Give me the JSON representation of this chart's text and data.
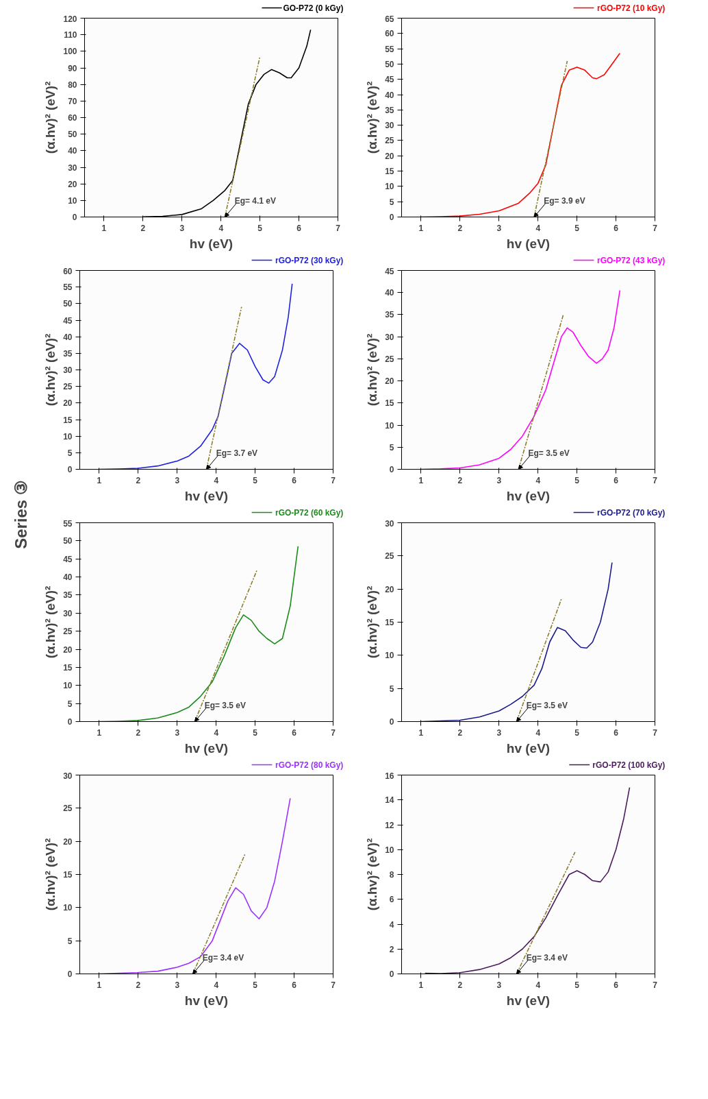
{
  "chart_data": [
    {
      "type": "line",
      "xlabel": "hv (eV)",
      "ylabel": "(α.hv)² (eV)²",
      "xlim": [
        0.5,
        7
      ],
      "xticks": [
        1,
        2,
        3,
        4,
        5,
        6,
        7
      ],
      "ylim": [
        0,
        120
      ],
      "yticks": [
        0,
        10,
        20,
        30,
        40,
        50,
        60,
        70,
        80,
        90,
        100,
        110,
        120
      ],
      "grid": false,
      "legend": "top right",
      "annotations": [
        "Series ③",
        {
          "text": "Eg= 4.1 eV",
          "x": 4.1,
          "y": 0
        }
      ],
      "series": [
        {
          "name": "GO-P72 (0 kGy)",
          "color": "#000000",
          "x": [
            2,
            2.5,
            3,
            3.5,
            3.8,
            4.1,
            4.3,
            4.5,
            4.7,
            4.9,
            5.1,
            5.3,
            5.5,
            5.7,
            5.8,
            6.0,
            6.2,
            6.3
          ],
          "values": [
            0.1,
            0.4,
            1.5,
            5,
            10,
            16,
            22,
            45,
            68,
            80,
            86,
            89,
            87,
            84,
            84,
            90,
            103,
            113
          ]
        },
        {
          "type": "line",
          "color": "#8b7d2a",
          "line_style": "dashed",
          "x": [
            4.1,
            5.0
          ],
          "values": [
            0,
            97
          ]
        }
      ]
    },
    {
      "type": "line",
      "xlabel": "hv (eV)",
      "ylabel": "(α.hv)² (eV)²",
      "xlim": [
        0.5,
        7
      ],
      "xticks": [
        1,
        2,
        3,
        4,
        5,
        6,
        7
      ],
      "ylim": [
        0,
        65
      ],
      "yticks": [
        0,
        5,
        10,
        15,
        20,
        25,
        30,
        35,
        40,
        45,
        50,
        55,
        60,
        65
      ],
      "grid": false,
      "legend": "top right",
      "annotations": [
        {
          "text": "Eg= 3.9 eV",
          "x": 3.9,
          "y": 0
        }
      ],
      "series": [
        {
          "name": "rGO-P72 (10 kGy)",
          "color": "#ff0000",
          "x": [
            1,
            1.5,
            2,
            2.5,
            3,
            3.5,
            3.8,
            4,
            4.2,
            4.4,
            4.6,
            4.8,
            5,
            5.2,
            5.4,
            5.5,
            5.7,
            5.9,
            6.1
          ],
          "values": [
            0,
            0.1,
            0.3,
            0.9,
            2,
            4.5,
            8,
            11,
            17,
            30,
            43,
            48,
            49,
            48,
            45.5,
            45.2,
            46.5,
            50,
            53.5
          ]
        },
        {
          "type": "line",
          "color": "#8b7d2a",
          "line_style": "dashed",
          "x": [
            3.9,
            4.75
          ],
          "values": [
            0,
            51
          ]
        }
      ]
    },
    {
      "type": "line",
      "xlabel": "hv (eV)",
      "ylabel": "(α.hv)² (eV)²",
      "xlim": [
        0.5,
        7
      ],
      "xticks": [
        1,
        2,
        3,
        4,
        5,
        6,
        7
      ],
      "ylim": [
        0,
        60
      ],
      "yticks": [
        0,
        5,
        10,
        15,
        20,
        25,
        30,
        35,
        40,
        45,
        50,
        55,
        60
      ],
      "grid": false,
      "legend": "top right",
      "annotations": [
        {
          "text": "Eg= 3.7 eV",
          "x": 3.75,
          "y": 0
        }
      ],
      "series": [
        {
          "name": "rGO-P72 (30 kGy)",
          "color": "#2020e0",
          "x": [
            1,
            1.5,
            2,
            2.5,
            3,
            3.3,
            3.6,
            3.9,
            4.05,
            4.2,
            4.4,
            4.6,
            4.8,
            5,
            5.2,
            5.35,
            5.5,
            5.7,
            5.85,
            5.95
          ],
          "values": [
            0,
            0.1,
            0.3,
            1,
            2.5,
            4,
            7,
            12,
            16,
            24,
            35,
            38,
            36,
            31,
            27,
            26,
            28,
            36,
            46,
            56
          ]
        },
        {
          "type": "line",
          "color": "#8b7d2a",
          "line_style": "dashed",
          "x": [
            3.75,
            4.65
          ],
          "values": [
            0,
            49
          ]
        }
      ]
    },
    {
      "type": "line",
      "xlabel": "hv (eV)",
      "ylabel": "(α.hv)² (eV)²",
      "xlim": [
        0.5,
        7
      ],
      "xticks": [
        1,
        2,
        3,
        4,
        5,
        6,
        7
      ],
      "ylim": [
        0,
        45
      ],
      "yticks": [
        0,
        5,
        10,
        15,
        20,
        25,
        30,
        35,
        40,
        45
      ],
      "grid": false,
      "legend": "top right",
      "annotations": [
        {
          "text": "Eg= 3.5 eV",
          "x": 3.5,
          "y": 0
        }
      ],
      "series": [
        {
          "name": "rGO-P72 (43 kGy)",
          "color": "#ff00ff",
          "x": [
            1,
            1.5,
            2,
            2.5,
            3,
            3.3,
            3.6,
            3.9,
            4.2,
            4.4,
            4.6,
            4.75,
            4.9,
            5.1,
            5.3,
            5.5,
            5.65,
            5.8,
            5.95,
            6.1
          ],
          "values": [
            0,
            0.1,
            0.3,
            1,
            2.5,
            4.5,
            7.5,
            12,
            18,
            24,
            30,
            32,
            31,
            28,
            25.5,
            24,
            25,
            27,
            32,
            40.5
          ]
        },
        {
          "type": "line",
          "color": "#8b7d2a",
          "line_style": "dashed",
          "x": [
            3.5,
            4.65
          ],
          "values": [
            0,
            35
          ]
        }
      ]
    },
    {
      "type": "line",
      "xlabel": "hv (eV)",
      "ylabel": "(α.hv)² (eV)²",
      "xlim": [
        0.5,
        7
      ],
      "xticks": [
        1,
        2,
        3,
        4,
        5,
        6,
        7
      ],
      "ylim": [
        0,
        55
      ],
      "yticks": [
        0,
        5,
        10,
        15,
        20,
        25,
        30,
        35,
        40,
        45,
        50,
        55
      ],
      "grid": false,
      "legend": "top right",
      "annotations": [
        {
          "text": "Eg= 3.5 eV",
          "x": 3.45,
          "y": 0
        }
      ],
      "series": [
        {
          "name": "rGO-P72 (60 kGy)",
          "color": "#1a8c1a",
          "x": [
            1,
            1.5,
            2,
            2.5,
            3,
            3.3,
            3.6,
            3.9,
            4.2,
            4.5,
            4.7,
            4.9,
            5.1,
            5.3,
            5.5,
            5.7,
            5.9,
            6.1
          ],
          "values": [
            0,
            0.1,
            0.3,
            1,
            2.5,
            4,
            7,
            11,
            18,
            26,
            29.5,
            28,
            25,
            23,
            21.5,
            23,
            32,
            48.5
          ]
        },
        {
          "type": "line",
          "color": "#8b7d2a",
          "line_style": "dashed",
          "x": [
            3.45,
            5.05
          ],
          "values": [
            0,
            42
          ]
        }
      ]
    },
    {
      "type": "line",
      "xlabel": "hv (eV)",
      "ylabel": "(α.hv)² (eV)²",
      "xlim": [
        0.5,
        7
      ],
      "xticks": [
        1,
        2,
        3,
        4,
        5,
        6,
        7
      ],
      "ylim": [
        0,
        30
      ],
      "yticks": [
        0,
        5,
        10,
        15,
        20,
        25,
        30
      ],
      "grid": false,
      "legend": "top right",
      "annotations": [
        {
          "text": "Eg= 3.5 eV",
          "x": 3.45,
          "y": 0
        }
      ],
      "series": [
        {
          "name": "rGO-P72 (70 kGy)",
          "color": "#1a1a8c",
          "x": [
            1,
            1.5,
            2,
            2.5,
            3,
            3.3,
            3.6,
            3.9,
            4.1,
            4.3,
            4.5,
            4.7,
            4.9,
            5.1,
            5.25,
            5.4,
            5.6,
            5.8,
            5.9
          ],
          "values": [
            0,
            0.1,
            0.2,
            0.7,
            1.6,
            2.6,
            3.8,
            5.5,
            8,
            12,
            14.2,
            13.7,
            12.3,
            11.2,
            11.1,
            12,
            15,
            20,
            24
          ]
        },
        {
          "type": "line",
          "color": "#8b7d2a",
          "line_style": "dashed",
          "x": [
            3.45,
            4.6
          ],
          "values": [
            0,
            18.5
          ]
        }
      ]
    },
    {
      "type": "line",
      "xlabel": "hv (eV)",
      "ylabel": "(α.hv)² (eV)²",
      "xlim": [
        0.5,
        7
      ],
      "xticks": [
        1,
        2,
        3,
        4,
        5,
        6,
        7
      ],
      "ylim": [
        0,
        30
      ],
      "yticks": [
        0,
        5,
        10,
        15,
        20,
        25,
        30
      ],
      "grid": false,
      "legend": "top right",
      "annotations": [
        {
          "text": "Eg= 3.4 eV",
          "x": 3.4,
          "y": 0
        }
      ],
      "series": [
        {
          "name": "rGO-P72 (80 kGy)",
          "color": "#9b30ff",
          "x": [
            1,
            1.5,
            2,
            2.5,
            3,
            3.3,
            3.6,
            3.9,
            4.1,
            4.3,
            4.5,
            4.7,
            4.9,
            5.1,
            5.3,
            5.5,
            5.7,
            5.9
          ],
          "values": [
            0,
            0.1,
            0.2,
            0.4,
            1,
            1.6,
            2.6,
            5,
            8,
            11,
            13,
            12,
            9.5,
            8.3,
            10,
            14,
            20,
            26.5
          ]
        },
        {
          "type": "line",
          "color": "#8b7d2a",
          "line_style": "dashed",
          "x": [
            3.4,
            4.75
          ],
          "values": [
            0,
            18.2
          ]
        }
      ]
    },
    {
      "type": "line",
      "xlabel": "hv (eV)",
      "ylabel": "(α.hv)² (eV)²",
      "xlim": [
        0.5,
        7
      ],
      "xticks": [
        1,
        2,
        3,
        4,
        5,
        6,
        7
      ],
      "ylim": [
        0,
        16
      ],
      "yticks": [
        0,
        2,
        4,
        6,
        8,
        10,
        12,
        14,
        16
      ],
      "grid": false,
      "legend": "top right",
      "annotations": [
        {
          "text": "Eg= 3.4 eV",
          "x": 3.45,
          "y": 0
        }
      ],
      "series": [
        {
          "name": "rGO-P72 (100 kGy)",
          "color": "#4b1a5c",
          "x": [
            1.1,
            1.5,
            2,
            2.5,
            3,
            3.3,
            3.6,
            3.9,
            4.2,
            4.5,
            4.8,
            5,
            5.2,
            5.4,
            5.6,
            5.8,
            6.0,
            6.2,
            6.35
          ],
          "values": [
            0.05,
            0.03,
            0.1,
            0.35,
            0.8,
            1.3,
            2,
            3,
            4.5,
            6.3,
            8,
            8.3,
            8,
            7.5,
            7.4,
            8.2,
            10,
            12.5,
            15
          ]
        },
        {
          "type": "line",
          "color": "#8b7d2a",
          "line_style": "dashed",
          "x": [
            3.45,
            4.95
          ],
          "values": [
            0,
            9.8
          ]
        }
      ]
    }
  ]
}
